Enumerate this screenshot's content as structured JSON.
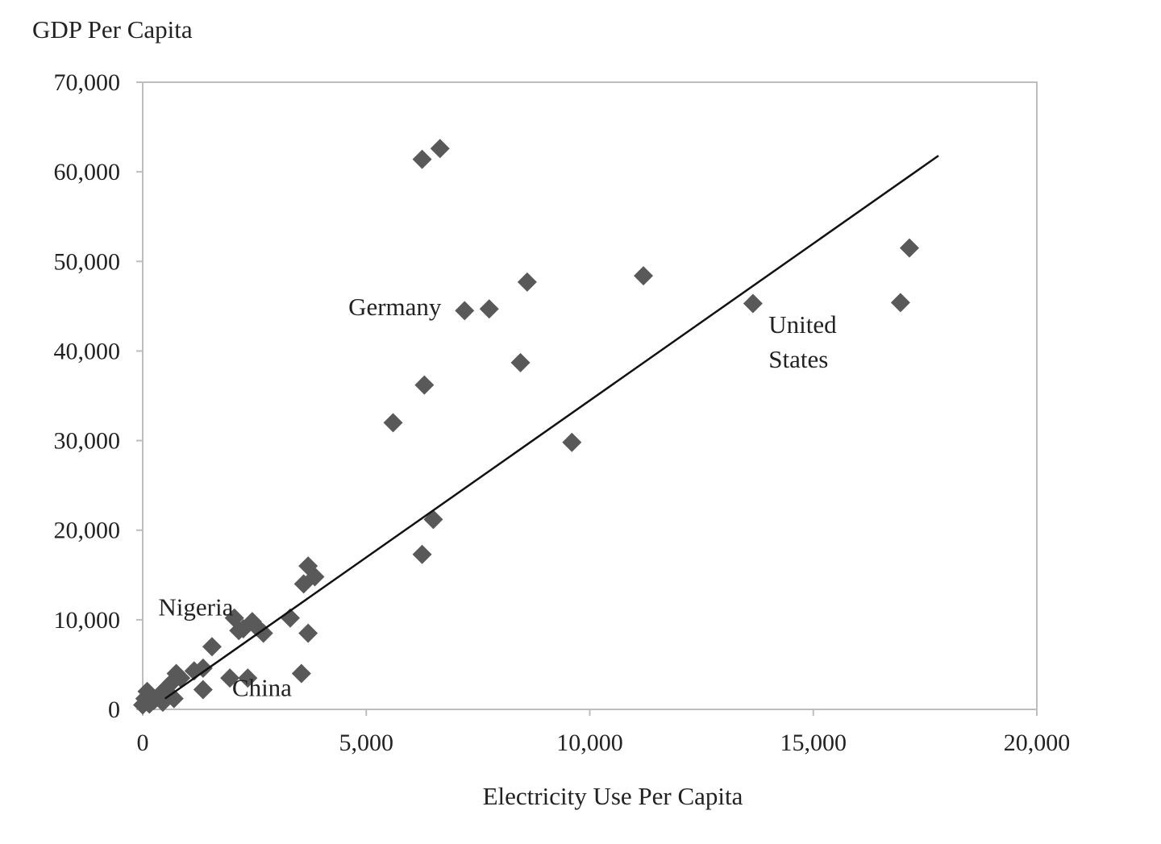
{
  "chart_data": {
    "type": "scatter",
    "title": "",
    "xlabel": "Electricity Use Per Capita",
    "ylabel": "GDP Per Capita",
    "xlim": [
      0,
      20000
    ],
    "ylim": [
      0,
      70000
    ],
    "x_ticks": [
      0,
      5000,
      10000,
      15000,
      20000
    ],
    "x_tick_labels": [
      "0",
      "5,000",
      "10,000",
      "15,000",
      "20,000"
    ],
    "y_ticks": [
      0,
      10000,
      20000,
      30000,
      40000,
      50000,
      60000,
      70000
    ],
    "y_tick_labels": [
      "0",
      "10,000",
      "20,000",
      "30,000",
      "40,000",
      "50,000",
      "60,000",
      "70,000"
    ],
    "grid": false,
    "legend": "none",
    "marker": "diamond",
    "marker_color": "#595959",
    "line_color": "#111111",
    "frame_color": "#bdbdbd",
    "points": [
      {
        "x": 0,
        "y": 500
      },
      {
        "x": 50,
        "y": 1200
      },
      {
        "x": 100,
        "y": 2000
      },
      {
        "x": 150,
        "y": 600
      },
      {
        "x": 250,
        "y": 1000
      },
      {
        "x": 350,
        "y": 1500
      },
      {
        "x": 450,
        "y": 800
      },
      {
        "x": 550,
        "y": 2500
      },
      {
        "x": 650,
        "y": 3000
      },
      {
        "x": 700,
        "y": 1200
      },
      {
        "x": 750,
        "y": 4000
      },
      {
        "x": 850,
        "y": 3500
      },
      {
        "x": 1150,
        "y": 4300
      },
      {
        "x": 1350,
        "y": 4600
      },
      {
        "x": 1350,
        "y": 2200
      },
      {
        "x": 1550,
        "y": 7000
      },
      {
        "x": 1950,
        "y": 3500
      },
      {
        "x": 2050,
        "y": 10200
      },
      {
        "x": 2150,
        "y": 8800
      },
      {
        "x": 2250,
        "y": 9000
      },
      {
        "x": 2350,
        "y": 3500
      },
      {
        "x": 2450,
        "y": 9800
      },
      {
        "x": 2550,
        "y": 9200
      },
      {
        "x": 2700,
        "y": 8500
      },
      {
        "x": 3300,
        "y": 10200
      },
      {
        "x": 3550,
        "y": 4000
      },
      {
        "x": 3600,
        "y": 14000
      },
      {
        "x": 3700,
        "y": 8500
      },
      {
        "x": 3700,
        "y": 16000
      },
      {
        "x": 3850,
        "y": 14800
      },
      {
        "x": 5600,
        "y": 32000
      },
      {
        "x": 6250,
        "y": 61400
      },
      {
        "x": 6250,
        "y": 17300
      },
      {
        "x": 6300,
        "y": 36200
      },
      {
        "x": 6500,
        "y": 21200
      },
      {
        "x": 6650,
        "y": 62600
      },
      {
        "x": 7200,
        "y": 44500
      },
      {
        "x": 7750,
        "y": 44700
      },
      {
        "x": 8450,
        "y": 38700
      },
      {
        "x": 8600,
        "y": 47700
      },
      {
        "x": 9600,
        "y": 29800
      },
      {
        "x": 11200,
        "y": 48400
      },
      {
        "x": 13650,
        "y": 45300
      },
      {
        "x": 16950,
        "y": 45400
      },
      {
        "x": 17150,
        "y": 51500
      }
    ],
    "trend_line": {
      "x": [
        500,
        17800
      ],
      "y": [
        1200,
        61800
      ]
    },
    "annotations": [
      {
        "lines": [
          "Germany"
        ],
        "x": 4600,
        "y": 44000
      },
      {
        "lines": [
          "United",
          "States"
        ],
        "x": 14000,
        "y": 42000
      },
      {
        "lines": [
          "Nigeria"
        ],
        "x": 350,
        "y": 10500
      },
      {
        "lines": [
          "China"
        ],
        "x": 2000,
        "y": 1500
      }
    ]
  }
}
